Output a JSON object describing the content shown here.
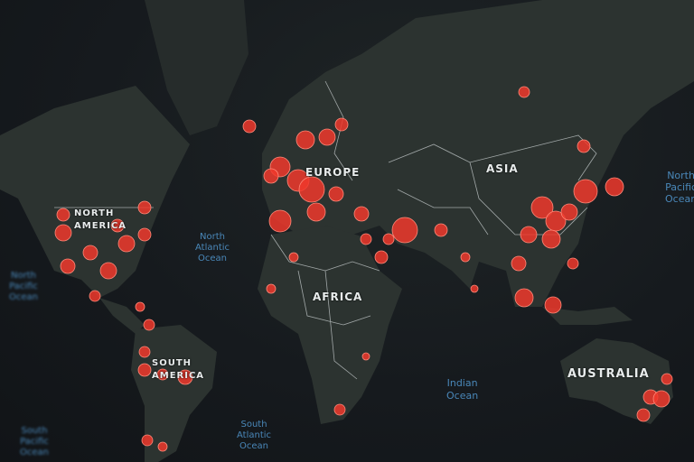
{
  "map": {
    "land_color": "#2c3330",
    "border_color": "#c9cfd0",
    "marker_color": "#f0382b",
    "ocean_label_color": "#4f93c9",
    "continents": {
      "north_america": "NORTH AMERICA",
      "south_america": "SOUTH AMERICA",
      "europe": "EUROPE",
      "africa": "AFRICA",
      "asia": "ASIA",
      "australia": "AUSTRALIA"
    },
    "oceans": {
      "north_atlantic": [
        "North",
        "Atlantic",
        "Ocean"
      ],
      "south_atlantic": [
        "South",
        "Atlantic",
        "Ocean"
      ],
      "indian": [
        "Indian",
        "Ocean"
      ],
      "north_pacific_left": [
        "North",
        "Pacific",
        "Ocean"
      ],
      "south_pacific_left": [
        "South",
        "Pacific",
        "Ocean"
      ],
      "north_pacific_right": [
        "North",
        "Pacific",
        "Ocean"
      ]
    }
  }
}
